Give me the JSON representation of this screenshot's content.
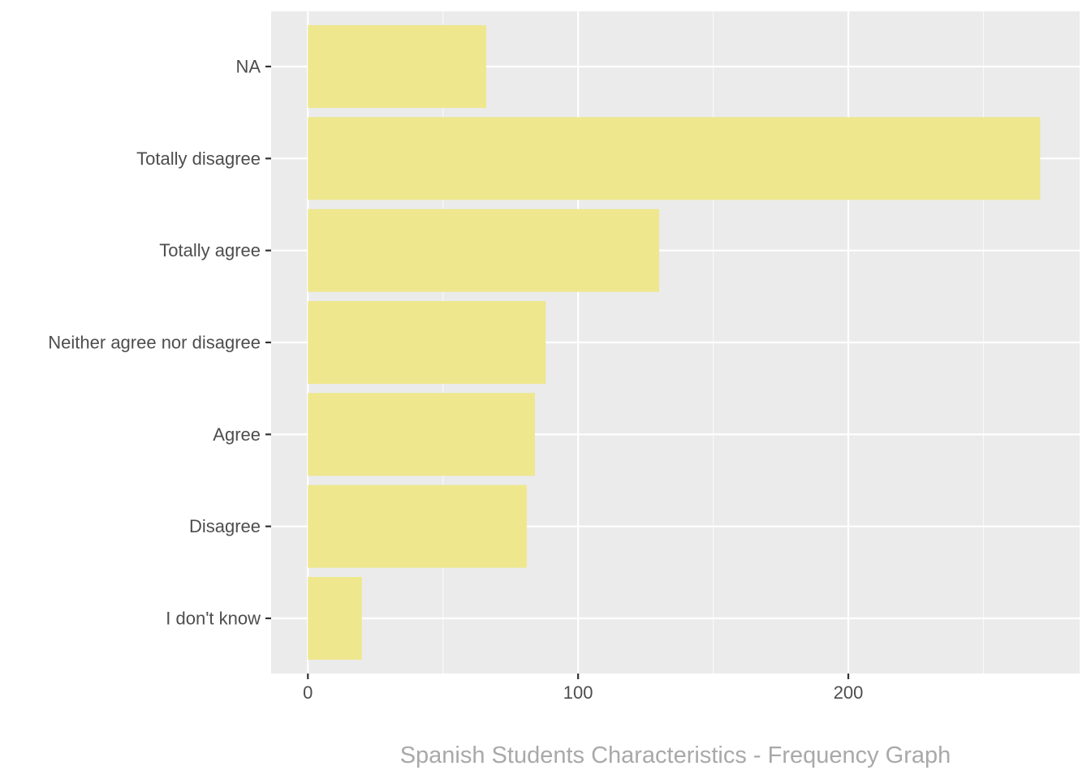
{
  "chart_data": {
    "type": "bar",
    "orientation": "horizontal",
    "categories": [
      "I don't know",
      "Disagree",
      "Agree",
      "Neither agree nor disagree",
      "Totally agree",
      "Totally disagree",
      "NA"
    ],
    "values": [
      20,
      81,
      84,
      88,
      130,
      271,
      66
    ],
    "x_ticks": [
      "0",
      "100",
      "200"
    ],
    "x_tick_values": [
      0,
      100,
      200
    ],
    "xlim": [
      -13.6,
      285.6
    ],
    "grid": true,
    "legend": "none",
    "caption": "Spanish Students Characteristics - Frequency Graph",
    "colors": {
      "bar": "#EEE78E",
      "panel": "#EBEBEB",
      "grid_major": "#FFFFFF",
      "tick_text": "#4D4D4D",
      "tick_mark": "#333333",
      "caption": "#A9A9A9"
    }
  }
}
